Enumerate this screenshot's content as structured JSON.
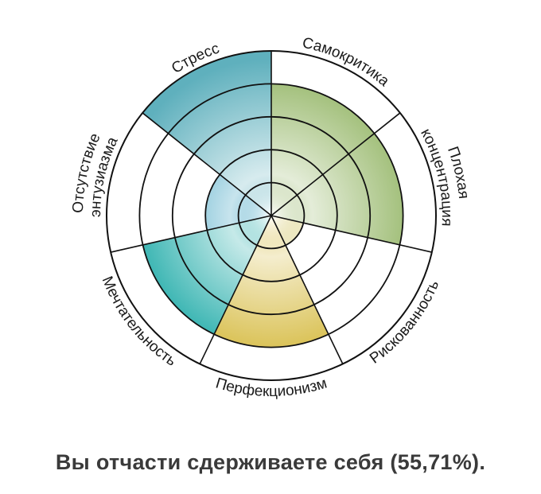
{
  "chart_data": {
    "type": "polar-area",
    "scale_max": 5,
    "rings": 5,
    "categories": [
      "Самокритика",
      "Плохая концентрация",
      "Рискованность",
      "Перфекционизм",
      "Мечтательность",
      "Отсутствие энтузиазма",
      "Стресс"
    ],
    "label_lines": [
      [
        "Самокритика"
      ],
      [
        "Плохая",
        "концентрация"
      ],
      [
        "Рискованность"
      ],
      [
        "Перфекционизм"
      ],
      [
        "Мечтательность"
      ],
      [
        "Отсутствие",
        "энтузиазма"
      ],
      [
        "Стресс"
      ]
    ],
    "values": [
      4,
      4,
      1,
      4,
      4,
      2,
      5
    ],
    "colors": [
      "#93b565",
      "#93b565",
      "#c9b944",
      "#d4b83a",
      "#1aa9a6",
      "#1f93b8",
      "#5fb0bd"
    ]
  },
  "result": {
    "text": "Вы отчасти сдерживаете себя (55,71%)."
  }
}
